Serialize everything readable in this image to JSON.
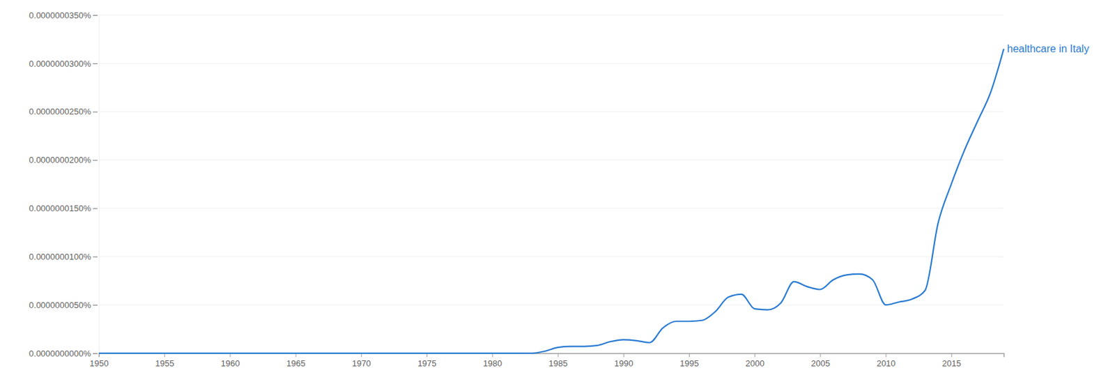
{
  "chart_data": {
    "type": "line",
    "x": [
      1950,
      1951,
      1952,
      1953,
      1954,
      1955,
      1956,
      1957,
      1958,
      1959,
      1960,
      1961,
      1962,
      1963,
      1964,
      1965,
      1966,
      1967,
      1968,
      1969,
      1970,
      1971,
      1972,
      1973,
      1974,
      1975,
      1976,
      1977,
      1978,
      1979,
      1980,
      1981,
      1982,
      1983,
      1984,
      1985,
      1986,
      1987,
      1988,
      1989,
      1990,
      1991,
      1992,
      1993,
      1994,
      1995,
      1996,
      1997,
      1998,
      1999,
      2000,
      2001,
      2002,
      2003,
      2004,
      2005,
      2006,
      2007,
      2008,
      2009,
      2010,
      2011,
      2012,
      2013,
      2014,
      2015,
      2016,
      2017,
      2018,
      2019
    ],
    "series": [
      {
        "name": "healthcare in Italy",
        "color": "#2a7bd3",
        "values": [
          0,
          0,
          0,
          0,
          0,
          0,
          0,
          0,
          0,
          0,
          0,
          0,
          0,
          0,
          0,
          0,
          0,
          0,
          0,
          0,
          0,
          0,
          0,
          0,
          0,
          0,
          0,
          0,
          0,
          0,
          0,
          0,
          0,
          0,
          2e-10,
          6e-10,
          7e-10,
          7e-10,
          8e-10,
          1.2e-09,
          1.4e-09,
          1.3e-09,
          1.1e-09,
          2.6e-09,
          3.3e-09,
          3.3e-09,
          3.4e-09,
          4.3e-09,
          5.8e-09,
          6.1e-09,
          4.6e-09,
          4.5e-09,
          5.2e-09,
          7.4e-09,
          6.9e-09,
          6.6e-09,
          7.6e-09,
          8.1e-09,
          8.2e-09,
          7.6e-09,
          5e-09,
          5.3e-09,
          5.6e-09,
          6.5e-09,
          1.35e-08,
          1.75e-08,
          2.1e-08,
          2.4e-08,
          2.7e-08,
          3.15e-08
        ]
      }
    ],
    "xlim": [
      1950,
      2019
    ],
    "xticks": [
      1950,
      1955,
      1960,
      1965,
      1970,
      1975,
      1980,
      1985,
      1990,
      1995,
      2000,
      2005,
      2010,
      2015
    ],
    "ylim": [
      0,
      3.5e-08
    ],
    "yticks": [
      {
        "value": 0,
        "label": "0.0000000000%"
      },
      {
        "value": 5e-09,
        "label": "0.0000000050%"
      },
      {
        "value": 1e-08,
        "label": "0.0000000100%"
      },
      {
        "value": 1.5e-08,
        "label": "0.0000000150%"
      },
      {
        "value": 2e-08,
        "label": "0.0000000200%"
      },
      {
        "value": 2.5e-08,
        "label": "0.0000000250%"
      },
      {
        "value": 3e-08,
        "label": "0.0000000300%"
      },
      {
        "value": 3.5e-08,
        "label": "0.0000000350%"
      }
    ],
    "grid": true,
    "tick_labels": true
  }
}
